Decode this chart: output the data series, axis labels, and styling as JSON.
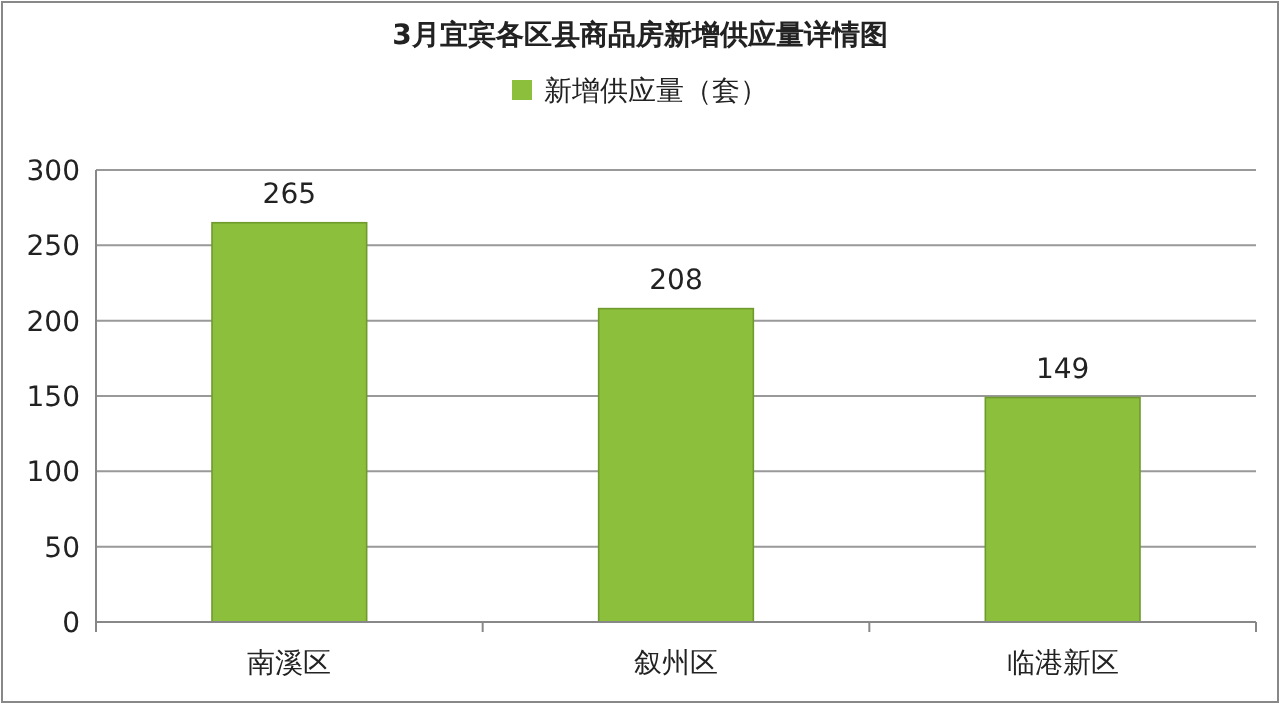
{
  "chart_data": {
    "type": "bar",
    "title": "3月宜宾各区县商品房新增供应量详情图",
    "categories": [
      "南溪区",
      "叙州区",
      "临港新区"
    ],
    "series": [
      {
        "name": "新增供应量（套）",
        "color": "#8cbf3c",
        "values": [
          265,
          208,
          149
        ]
      }
    ],
    "ylim": [
      0,
      300
    ],
    "yticks": [
      0,
      50,
      100,
      150,
      200,
      250,
      300
    ],
    "grid": "y",
    "legend": "top",
    "data_labels": true
  }
}
